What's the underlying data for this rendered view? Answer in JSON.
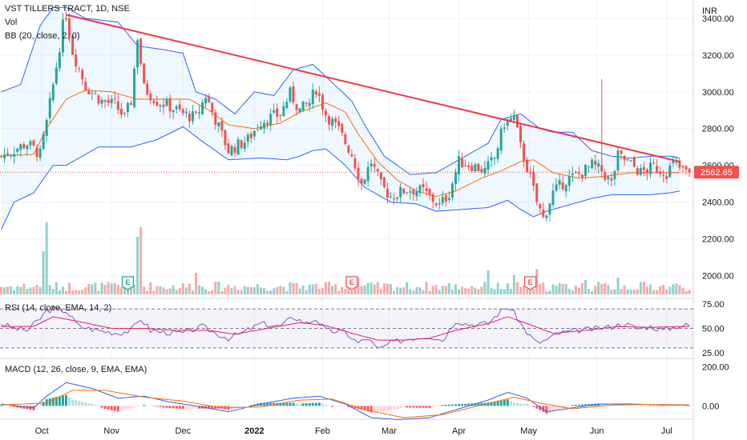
{
  "title": "VST TILLERS TRACT, 1D, NSE",
  "legend": {
    "vol": "Vol",
    "bb": "BB (20, close, 2, 0)",
    "rsi": "RSI (14, close, EMA, 14, 2)",
    "macd": "MACD (12, 26, close, 9, EMA, EMA)"
  },
  "currency": "INR",
  "last_price": "2562.65",
  "colors": {
    "up": "#26a69a",
    "down": "#ef5350",
    "trendline": "#f23645",
    "bb_band": "#2962ff",
    "bb_basis": "#ff6d00",
    "rsi_line": "#7e57c2",
    "rsi_ma": "#e91e63",
    "macd_line": "#2962ff",
    "signal_line": "#ff6d00"
  },
  "earnings_marker": "E",
  "chart_data": {
    "type": "candlestick",
    "title": "VST TILLERS TRACT, 1D, NSE",
    "ylabel": "INR",
    "y_ticks": [
      2000,
      2200,
      2400,
      2600,
      2800,
      3000,
      3200,
      3400
    ],
    "ylim": [
      1880,
      3500
    ],
    "x_labels": [
      "Oct",
      "Nov",
      "Dec",
      "2022",
      "Feb",
      "Mar",
      "Apr",
      "May",
      "Jun",
      "Jul"
    ],
    "x_label_positions": [
      12.5,
      34,
      56,
      78,
      99,
      119.5,
      141,
      162.5,
      183.5,
      205
    ],
    "bars_count": 213,
    "price_anchors": [
      [
        0,
        2650
      ],
      [
        8,
        2720
      ],
      [
        12,
        2660
      ],
      [
        14,
        2830
      ],
      [
        17,
        3140
      ],
      [
        19,
        3360
      ],
      [
        20,
        3420
      ],
      [
        22,
        3220
      ],
      [
        26,
        3030
      ],
      [
        31,
        2950
      ],
      [
        35,
        2930
      ],
      [
        38,
        2860
      ],
      [
        40,
        2950
      ],
      [
        42,
        3300
      ],
      [
        44,
        3020
      ],
      [
        48,
        2950
      ],
      [
        52,
        2920
      ],
      [
        56,
        2880
      ],
      [
        60,
        2860
      ],
      [
        63,
        2980
      ],
      [
        66,
        2850
      ],
      [
        70,
        2680
      ],
      [
        76,
        2740
      ],
      [
        80,
        2840
      ],
      [
        86,
        2880
      ],
      [
        89,
        2990
      ],
      [
        92,
        2900
      ],
      [
        95,
        2940
      ],
      [
        97,
        3020
      ],
      [
        100,
        2880
      ],
      [
        104,
        2790
      ],
      [
        108,
        2660
      ],
      [
        111,
        2500
      ],
      [
        114,
        2620
      ],
      [
        117,
        2490
      ],
      [
        120,
        2430
      ],
      [
        125,
        2470
      ],
      [
        130,
        2460
      ],
      [
        135,
        2380
      ],
      [
        138,
        2450
      ],
      [
        141,
        2620
      ],
      [
        145,
        2600
      ],
      [
        149,
        2570
      ],
      [
        152,
        2640
      ],
      [
        155,
        2830
      ],
      [
        158,
        2860
      ],
      [
        160,
        2700
      ],
      [
        163,
        2530
      ],
      [
        165,
        2400
      ],
      [
        167,
        2310
      ],
      [
        170,
        2450
      ],
      [
        174,
        2520
      ],
      [
        178,
        2550
      ],
      [
        182,
        2600
      ],
      [
        185,
        2570
      ],
      [
        188,
        2500
      ],
      [
        190,
        2650
      ],
      [
        193,
        2620
      ],
      [
        197,
        2560
      ],
      [
        201,
        2590
      ],
      [
        205,
        2560
      ],
      [
        207,
        2610
      ],
      [
        210,
        2570
      ],
      [
        213,
        2563
      ]
    ],
    "bollinger": {
      "upper_anchors": [
        [
          0,
          3000
        ],
        [
          6,
          3040
        ],
        [
          12,
          3360
        ],
        [
          16,
          3460
        ],
        [
          20,
          3460
        ],
        [
          26,
          3400
        ],
        [
          36,
          3380
        ],
        [
          42,
          3250
        ],
        [
          50,
          3230
        ],
        [
          56,
          3210
        ],
        [
          60,
          3000
        ],
        [
          66,
          2960
        ],
        [
          72,
          2880
        ],
        [
          78,
          3000
        ],
        [
          84,
          2980
        ],
        [
          90,
          3120
        ],
        [
          96,
          3150
        ],
        [
          102,
          3050
        ],
        [
          108,
          2950
        ],
        [
          112,
          2820
        ],
        [
          118,
          2650
        ],
        [
          126,
          2550
        ],
        [
          134,
          2560
        ],
        [
          142,
          2640
        ],
        [
          150,
          2720
        ],
        [
          154,
          2850
        ],
        [
          160,
          2880
        ],
        [
          166,
          2800
        ],
        [
          170,
          2780
        ],
        [
          176,
          2780
        ],
        [
          182,
          2680
        ],
        [
          188,
          2650
        ],
        [
          194,
          2640
        ],
        [
          200,
          2650
        ],
        [
          206,
          2650
        ],
        [
          209,
          2640
        ]
      ],
      "lower_anchors": [
        [
          0,
          2250
        ],
        [
          4,
          2400
        ],
        [
          10,
          2450
        ],
        [
          16,
          2600
        ],
        [
          20,
          2600
        ],
        [
          30,
          2700
        ],
        [
          40,
          2700
        ],
        [
          48,
          2740
        ],
        [
          56,
          2810
        ],
        [
          62,
          2730
        ],
        [
          70,
          2630
        ],
        [
          80,
          2640
        ],
        [
          88,
          2630
        ],
        [
          92,
          2650
        ],
        [
          96,
          2680
        ],
        [
          100,
          2690
        ],
        [
          106,
          2600
        ],
        [
          112,
          2480
        ],
        [
          120,
          2400
        ],
        [
          128,
          2390
        ],
        [
          134,
          2350
        ],
        [
          142,
          2360
        ],
        [
          150,
          2370
        ],
        [
          156,
          2410
        ],
        [
          160,
          2360
        ],
        [
          164,
          2320
        ],
        [
          168,
          2350
        ],
        [
          174,
          2380
        ],
        [
          182,
          2420
        ],
        [
          188,
          2440
        ],
        [
          194,
          2440
        ],
        [
          200,
          2440
        ],
        [
          206,
          2450
        ],
        [
          209,
          2460
        ]
      ],
      "basis_anchors": [
        [
          0,
          2650
        ],
        [
          10,
          2660
        ],
        [
          14,
          2800
        ],
        [
          20,
          2960
        ],
        [
          26,
          3010
        ],
        [
          34,
          3000
        ],
        [
          42,
          2960
        ],
        [
          50,
          2960
        ],
        [
          58,
          2960
        ],
        [
          64,
          2900
        ],
        [
          70,
          2820
        ],
        [
          78,
          2800
        ],
        [
          86,
          2830
        ],
        [
          92,
          2890
        ],
        [
          100,
          2940
        ],
        [
          106,
          2890
        ],
        [
          110,
          2770
        ],
        [
          116,
          2620
        ],
        [
          122,
          2520
        ],
        [
          128,
          2460
        ],
        [
          134,
          2430
        ],
        [
          140,
          2460
        ],
        [
          148,
          2530
        ],
        [
          154,
          2570
        ],
        [
          160,
          2620
        ],
        [
          164,
          2630
        ],
        [
          170,
          2560
        ],
        [
          178,
          2530
        ],
        [
          186,
          2540
        ],
        [
          194,
          2560
        ],
        [
          202,
          2560
        ],
        [
          209,
          2560
        ]
      ]
    },
    "trendline": {
      "from": [
        20,
        3420
      ],
      "to": [
        209,
        2620
      ]
    },
    "volume": {
      "spikes": [
        [
          13,
          180
        ],
        [
          14,
          300
        ],
        [
          42,
          240
        ],
        [
          43,
          280
        ],
        [
          60,
          90
        ],
        [
          110,
          70
        ],
        [
          150,
          100
        ],
        [
          158,
          80
        ],
        [
          165,
          105
        ],
        [
          180,
          60
        ],
        [
          190,
          70
        ]
      ]
    },
    "earnings_at": [
      39,
      108,
      163
    ],
    "rsi": {
      "levels": [
        70,
        50,
        30
      ],
      "y_ticks": [
        25,
        50,
        75
      ],
      "ylim": [
        20,
        80
      ],
      "anchors": [
        [
          0,
          55
        ],
        [
          4,
          50
        ],
        [
          8,
          48
        ],
        [
          12,
          60
        ],
        [
          14,
          68
        ],
        [
          16,
          70
        ],
        [
          20,
          68
        ],
        [
          24,
          52
        ],
        [
          30,
          48
        ],
        [
          36,
          45
        ],
        [
          40,
          48
        ],
        [
          43,
          60
        ],
        [
          46,
          48
        ],
        [
          50,
          46
        ],
        [
          56,
          45
        ],
        [
          62,
          52
        ],
        [
          66,
          45
        ],
        [
          70,
          40
        ],
        [
          74,
          45
        ],
        [
          80,
          55
        ],
        [
          86,
          52
        ],
        [
          90,
          62
        ],
        [
          94,
          55
        ],
        [
          97,
          60
        ],
        [
          100,
          48
        ],
        [
          106,
          46
        ],
        [
          110,
          35
        ],
        [
          113,
          40
        ],
        [
          116,
          28
        ],
        [
          120,
          35
        ],
        [
          126,
          40
        ],
        [
          132,
          42
        ],
        [
          136,
          38
        ],
        [
          140,
          58
        ],
        [
          144,
          54
        ],
        [
          150,
          55
        ],
        [
          154,
          68
        ],
        [
          156,
          72
        ],
        [
          158,
          66
        ],
        [
          161,
          50
        ],
        [
          163,
          42
        ],
        [
          165,
          35
        ],
        [
          168,
          38
        ],
        [
          172,
          45
        ],
        [
          178,
          48
        ],
        [
          184,
          50
        ],
        [
          188,
          52
        ],
        [
          192,
          55
        ],
        [
          196,
          50
        ],
        [
          200,
          52
        ],
        [
          204,
          48
        ],
        [
          208,
          52
        ],
        [
          210,
          53
        ]
      ],
      "ma_anchors": [
        [
          0,
          52
        ],
        [
          10,
          52
        ],
        [
          16,
          62
        ],
        [
          24,
          57
        ],
        [
          34,
          50
        ],
        [
          44,
          50
        ],
        [
          54,
          48
        ],
        [
          64,
          48
        ],
        [
          72,
          44
        ],
        [
          82,
          50
        ],
        [
          92,
          56
        ],
        [
          100,
          53
        ],
        [
          108,
          45
        ],
        [
          116,
          38
        ],
        [
          124,
          38
        ],
        [
          132,
          40
        ],
        [
          140,
          48
        ],
        [
          150,
          55
        ],
        [
          156,
          62
        ],
        [
          162,
          55
        ],
        [
          170,
          45
        ],
        [
          180,
          48
        ],
        [
          190,
          52
        ],
        [
          200,
          51
        ],
        [
          210,
          52
        ]
      ]
    },
    "macd": {
      "y_ticks": [
        0,
        200
      ],
      "ylim": [
        -60,
        240
      ],
      "macd_anchors": [
        [
          0,
          10
        ],
        [
          10,
          -10
        ],
        [
          14,
          50
        ],
        [
          20,
          120
        ],
        [
          28,
          90
        ],
        [
          36,
          40
        ],
        [
          44,
          50
        ],
        [
          52,
          20
        ],
        [
          60,
          0
        ],
        [
          70,
          -30
        ],
        [
          80,
          10
        ],
        [
          90,
          40
        ],
        [
          98,
          50
        ],
        [
          106,
          10
        ],
        [
          114,
          -60
        ],
        [
          122,
          -70
        ],
        [
          132,
          -60
        ],
        [
          140,
          -20
        ],
        [
          150,
          30
        ],
        [
          156,
          70
        ],
        [
          162,
          40
        ],
        [
          168,
          -30
        ],
        [
          176,
          -10
        ],
        [
          184,
          10
        ],
        [
          194,
          10
        ],
        [
          204,
          5
        ],
        [
          210,
          5
        ]
      ],
      "signal_anchors": [
        [
          0,
          5
        ],
        [
          14,
          15
        ],
        [
          22,
          80
        ],
        [
          32,
          80
        ],
        [
          44,
          45
        ],
        [
          56,
          25
        ],
        [
          68,
          -10
        ],
        [
          80,
          -5
        ],
        [
          92,
          30
        ],
        [
          102,
          35
        ],
        [
          112,
          -20
        ],
        [
          124,
          -60
        ],
        [
          136,
          -45
        ],
        [
          148,
          5
        ],
        [
          158,
          45
        ],
        [
          166,
          15
        ],
        [
          176,
          -15
        ],
        [
          188,
          5
        ],
        [
          200,
          8
        ],
        [
          210,
          6
        ]
      ]
    }
  }
}
